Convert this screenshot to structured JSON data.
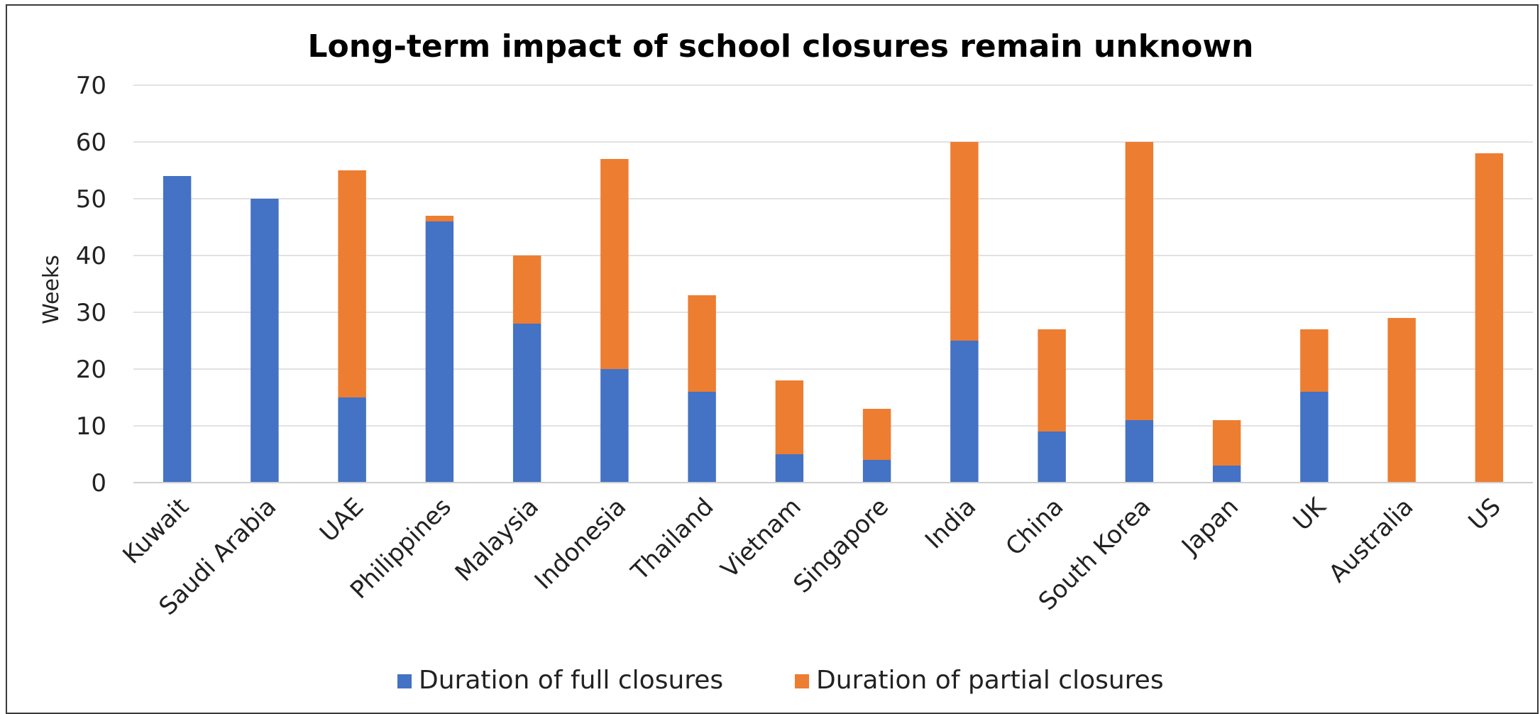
{
  "chart_data": {
    "type": "bar",
    "stacked": true,
    "title": "Long-term impact of school closures remain unknown",
    "xlabel": "",
    "ylabel": "Weeks",
    "ylim": [
      0,
      70
    ],
    "yticks": [
      0,
      10,
      20,
      30,
      40,
      50,
      60,
      70
    ],
    "grid": true,
    "legend_position": "bottom",
    "categories": [
      "Kuwait",
      "Saudi Arabia",
      "UAE",
      "Philippines",
      "Malaysia",
      "Indonesia",
      "Thailand",
      "Vietnam",
      "Singapore",
      "India",
      "China",
      "South Korea",
      "Japan",
      "UK",
      "Australia",
      "US"
    ],
    "series": [
      {
        "name": "Duration of full closures",
        "color": "#4472C4",
        "values": [
          54,
          50,
          15,
          46,
          28,
          20,
          16,
          5,
          4,
          25,
          9,
          11,
          3,
          16,
          0,
          0
        ]
      },
      {
        "name": "Duration of partial closures",
        "color": "#ED7D31",
        "values": [
          0,
          0,
          40,
          1,
          12,
          37,
          17,
          13,
          9,
          35,
          18,
          49,
          8,
          11,
          29,
          58
        ]
      }
    ]
  }
}
